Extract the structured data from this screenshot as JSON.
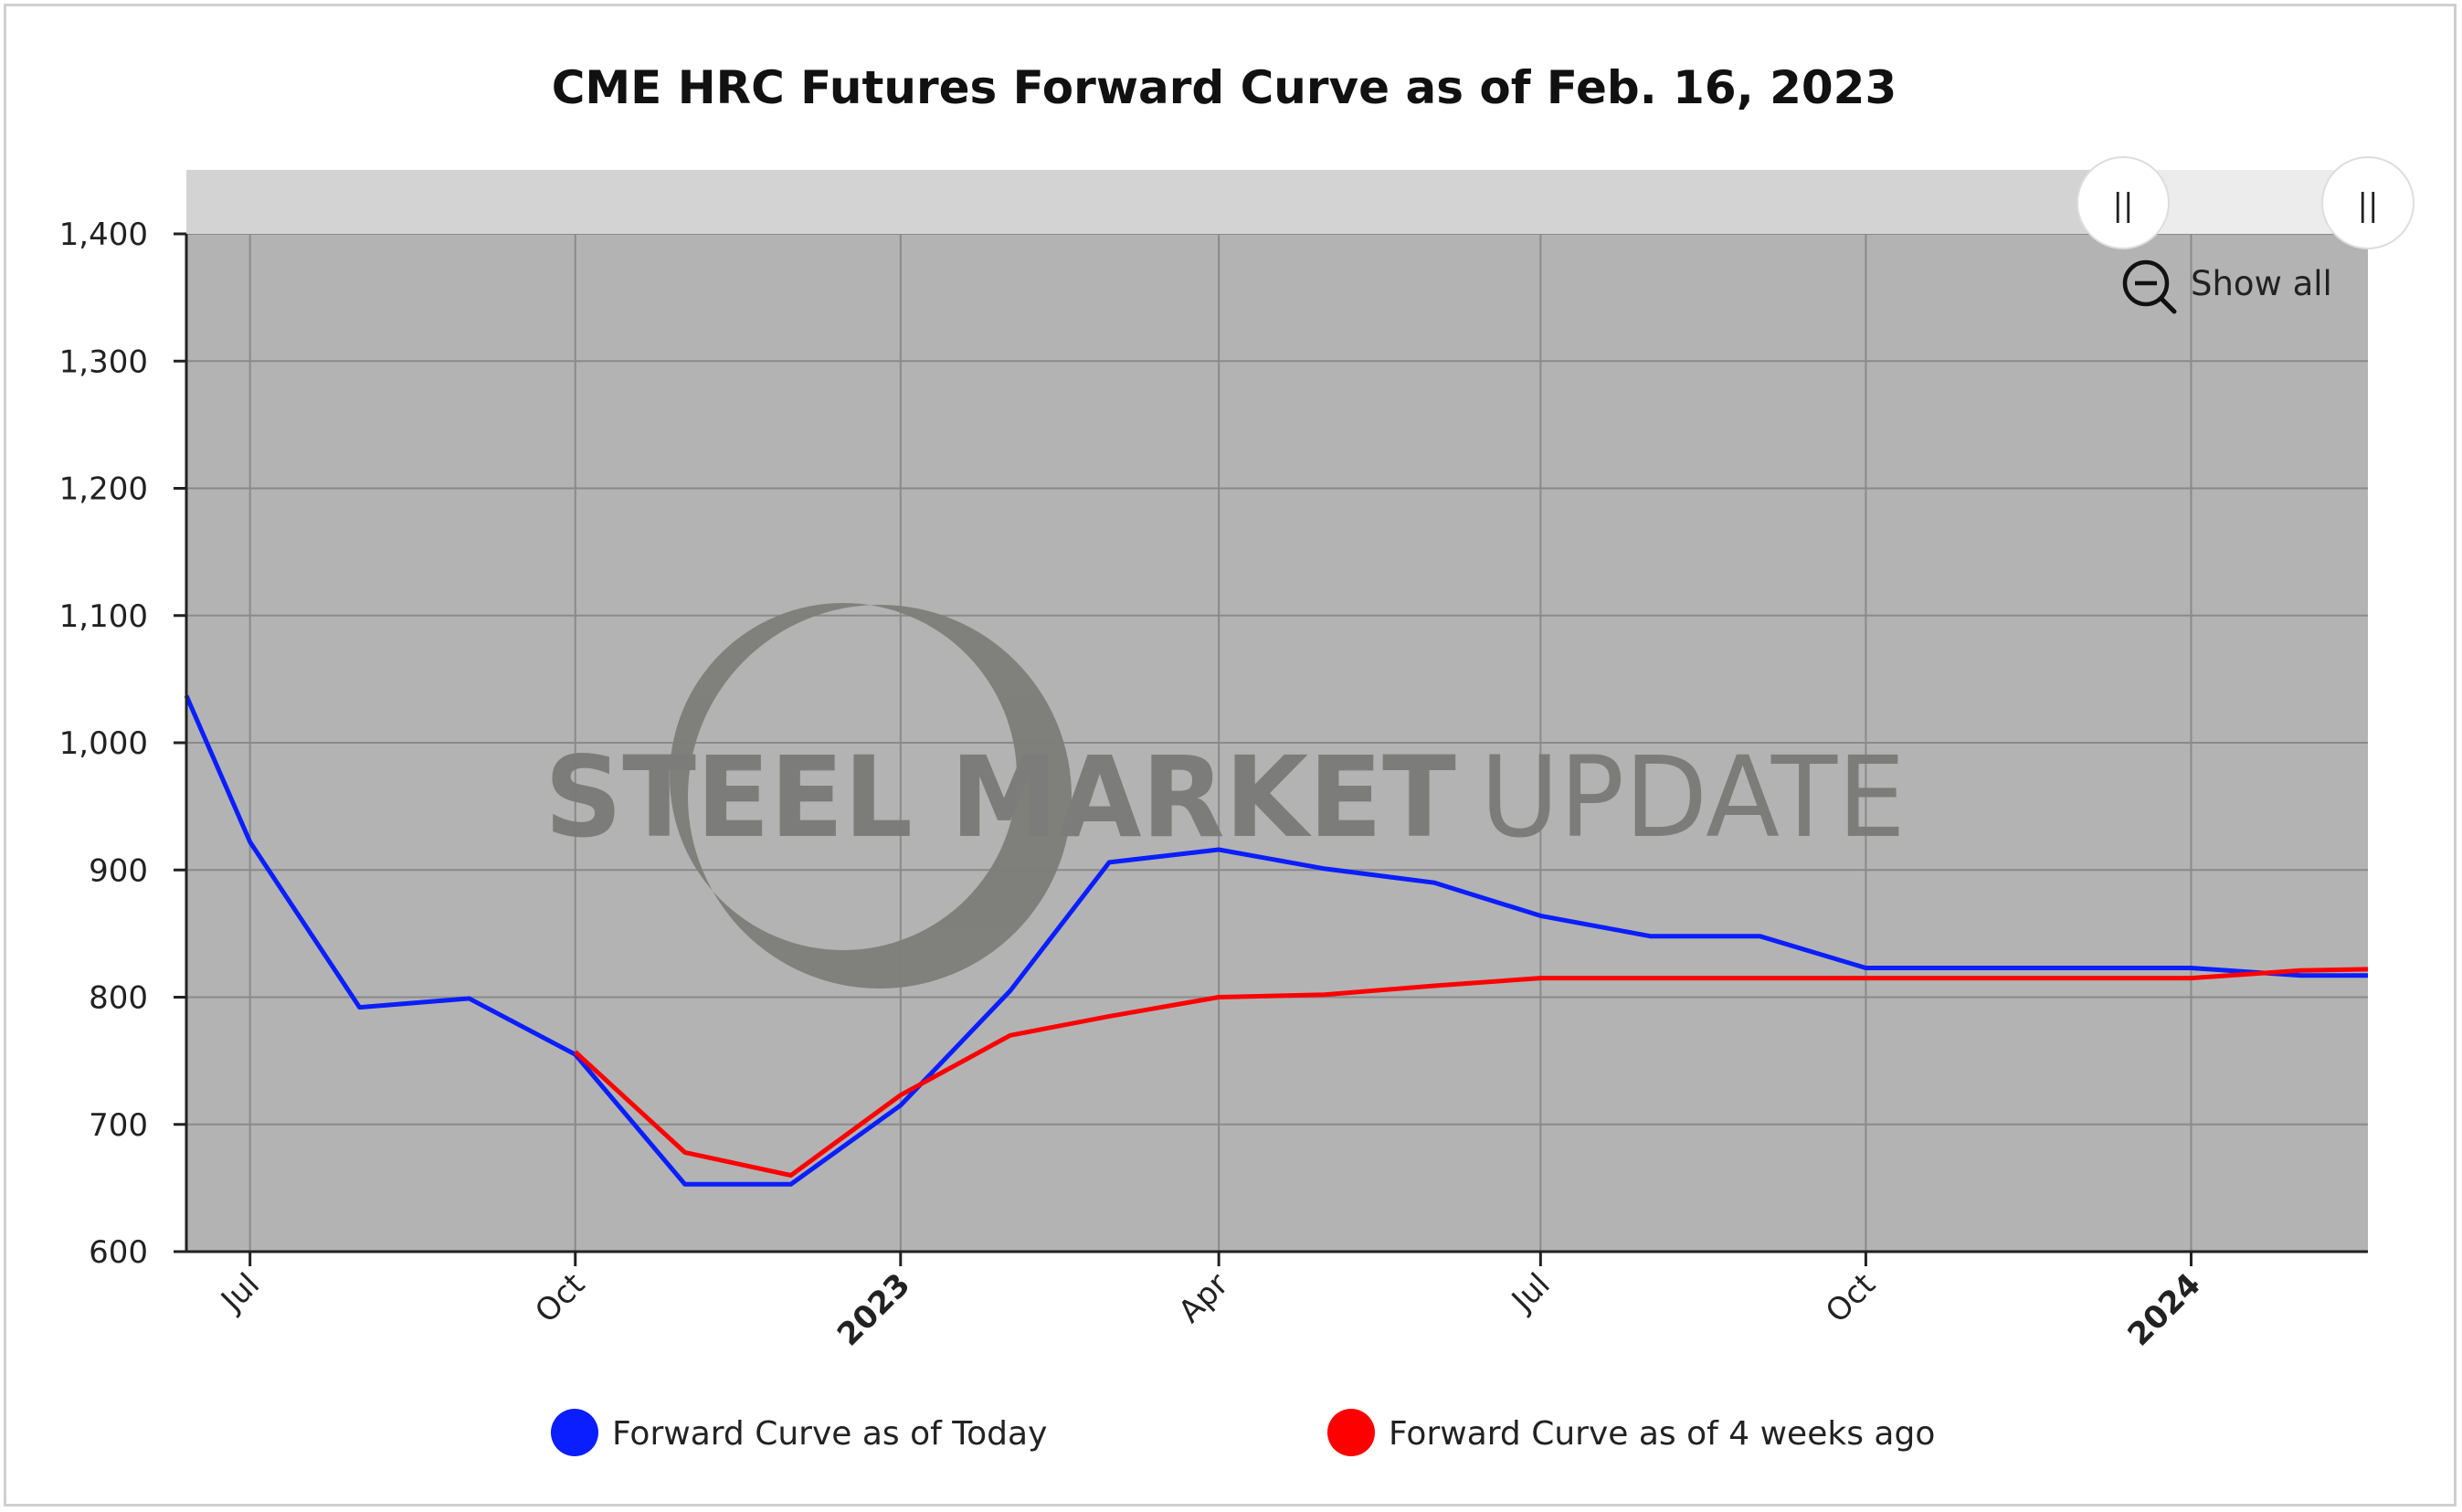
{
  "chart_data": {
    "type": "line",
    "title": "CME HRC Futures Forward Curve as of Feb. 16, 2023",
    "xlabel": "",
    "ylabel": "",
    "ylim": [
      600,
      1400
    ],
    "yticks": [
      600,
      700,
      800,
      900,
      1000,
      1100,
      1200,
      1300,
      1400
    ],
    "ytick_labels": [
      "600",
      "700",
      "800",
      "900",
      "1,000",
      "1,100",
      "1,200",
      "1,300",
      "1,400"
    ],
    "xlim": [
      "2022-06-13",
      "2024-02-20"
    ],
    "xticks": [
      {
        "date": "2022-07-01",
        "label": "Jul",
        "bold": false
      },
      {
        "date": "2022-10-01",
        "label": "Oct",
        "bold": false
      },
      {
        "date": "2023-01-01",
        "label": "2023",
        "bold": true
      },
      {
        "date": "2023-04-01",
        "label": "Apr",
        "bold": false
      },
      {
        "date": "2023-07-01",
        "label": "Jul",
        "bold": false
      },
      {
        "date": "2023-10-01",
        "label": "Oct",
        "bold": false
      },
      {
        "date": "2024-01-01",
        "label": "2024",
        "bold": true
      }
    ],
    "grid": true,
    "legend_position": "bottom",
    "series": [
      {
        "name": "Forward Curve as of Today",
        "color": "#0a1eff",
        "points": [
          [
            "2022-06-13",
            1037
          ],
          [
            "2022-07-01",
            922
          ],
          [
            "2022-08-01",
            792
          ],
          [
            "2022-09-01",
            799
          ],
          [
            "2022-10-01",
            755
          ],
          [
            "2022-11-01",
            653
          ],
          [
            "2022-12-01",
            653
          ],
          [
            "2023-01-01",
            715
          ],
          [
            "2023-02-01",
            805
          ],
          [
            "2023-03-01",
            906
          ],
          [
            "2023-04-01",
            916
          ],
          [
            "2023-05-01",
            901
          ],
          [
            "2023-06-01",
            890
          ],
          [
            "2023-07-01",
            864
          ],
          [
            "2023-08-01",
            848
          ],
          [
            "2023-09-01",
            848
          ],
          [
            "2023-10-01",
            823
          ],
          [
            "2023-11-01",
            823
          ],
          [
            "2023-12-01",
            823
          ],
          [
            "2024-01-01",
            823
          ],
          [
            "2024-02-01",
            817
          ],
          [
            "2024-02-20",
            817
          ]
        ]
      },
      {
        "name": "Forward Curve as of 4 weeks ago",
        "color": "#ff0000",
        "points": [
          [
            "2022-10-01",
            757
          ],
          [
            "2022-11-01",
            678
          ],
          [
            "2022-12-01",
            660
          ],
          [
            "2023-01-01",
            723
          ],
          [
            "2023-02-01",
            770
          ],
          [
            "2023-03-01",
            785
          ],
          [
            "2023-04-01",
            800
          ],
          [
            "2023-05-01",
            802
          ],
          [
            "2023-06-01",
            809
          ],
          [
            "2023-07-01",
            815
          ],
          [
            "2023-08-01",
            815
          ],
          [
            "2023-09-01",
            815
          ],
          [
            "2023-10-01",
            815
          ],
          [
            "2023-11-01",
            815
          ],
          [
            "2023-12-01",
            815
          ],
          [
            "2024-01-01",
            815
          ],
          [
            "2024-02-01",
            821
          ],
          [
            "2024-02-20",
            822
          ]
        ]
      }
    ]
  },
  "watermark": {
    "part_bold": "STEEL MARKET",
    "part_light": "UPDATE"
  },
  "controls": {
    "show_all_label": "Show all",
    "handle_left_glyph": "||",
    "handle_right_glyph": "||",
    "zoom_icon": "zoom-out-icon"
  },
  "colors": {
    "plot_background": "#b3b3b3",
    "navigator_background": "#d3d3d3"
  }
}
